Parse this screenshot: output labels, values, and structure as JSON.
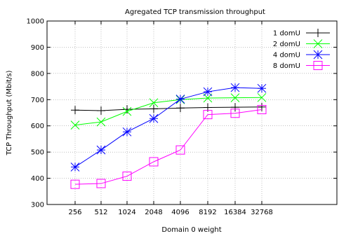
{
  "chart_data": {
    "type": "line",
    "title": "Agregated TCP transmission throughput",
    "xlabel": "Domain 0 weight",
    "ylabel": "TCP Throughput (Mbit/s)",
    "categories": [
      "256",
      "512",
      "1024",
      "2048",
      "4096",
      "8192",
      "16384",
      "32768"
    ],
    "ylim": [
      300,
      1000
    ],
    "yticks": [
      300,
      400,
      500,
      600,
      700,
      800,
      900,
      1000
    ],
    "grid": true,
    "legend_position": "top-right",
    "series": [
      {
        "name": "1 domU",
        "color": "#000000",
        "marker": "plus",
        "values": [
          660,
          658,
          663,
          665,
          668,
          670,
          671,
          672
        ]
      },
      {
        "name": "2 domU",
        "color": "#00ff00",
        "marker": "cross",
        "values": [
          603,
          615,
          655,
          688,
          700,
          706,
          707,
          708
        ]
      },
      {
        "name": "4 domU",
        "color": "#0000ff",
        "marker": "star",
        "values": [
          443,
          508,
          577,
          628,
          702,
          730,
          746,
          743
        ]
      },
      {
        "name": "8 domU",
        "color": "#ff00ff",
        "marker": "square",
        "values": [
          377,
          380,
          408,
          463,
          508,
          643,
          648,
          662
        ]
      }
    ]
  }
}
